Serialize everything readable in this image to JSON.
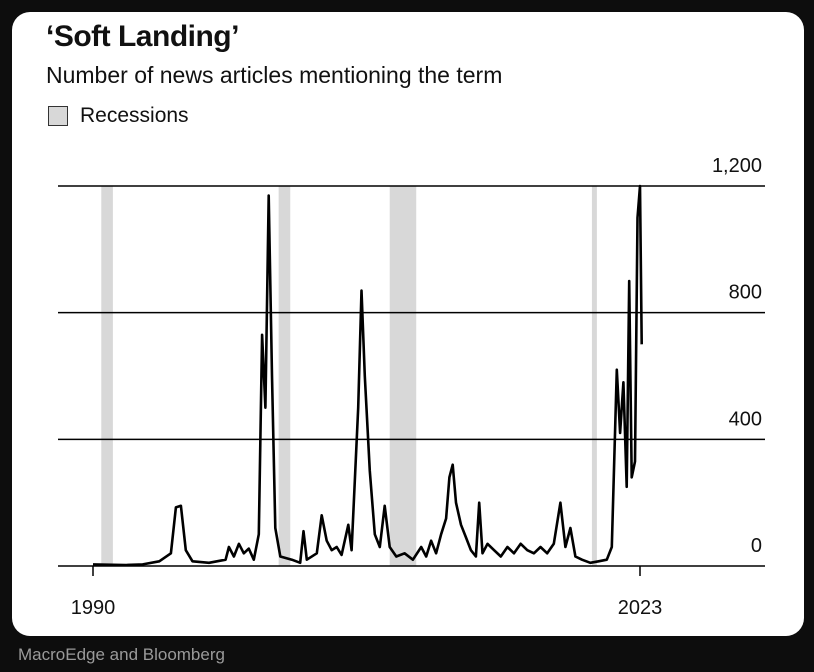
{
  "colors": {
    "background": "#0d0d0d",
    "card": "#ffffff",
    "line": "#000000",
    "recession": "#d8d8d8",
    "source_text": "#9a9a9a"
  },
  "source": "MacroEdge and Bloomberg",
  "chart_data": {
    "type": "line",
    "title": "‘Soft Landing’",
    "subtitle": "Number of news articles mentioning the term",
    "legend": [
      {
        "label": "Recessions",
        "color": "#d8d8d8",
        "placement": "top-left"
      }
    ],
    "xlabel": "",
    "ylabel": "",
    "xlim": [
      1990,
      2030
    ],
    "ylim": [
      0,
      1200
    ],
    "grid": true,
    "y_axis_side": "right",
    "x_tick_labels": [
      "1990",
      "2023"
    ],
    "y_tick_labels": [
      "1,200",
      "800",
      "400",
      "0"
    ],
    "y_ticks": [
      1200,
      800,
      400,
      0
    ],
    "x_ticks": [
      1990,
      2023
    ],
    "recessions": [
      [
        1990.5,
        1991.2
      ],
      [
        2001.2,
        2001.9
      ],
      [
        2007.9,
        2009.5
      ],
      [
        2020.1,
        2020.4
      ]
    ],
    "series": [
      {
        "values": [
          [
            1990,
            5
          ],
          [
            1992,
            3
          ],
          [
            1993,
            5
          ],
          [
            1994,
            15
          ],
          [
            1994.7,
            40
          ],
          [
            1995,
            185
          ],
          [
            1995.3,
            190
          ],
          [
            1995.6,
            50
          ],
          [
            1996,
            15
          ],
          [
            1997,
            10
          ],
          [
            1998,
            20
          ],
          [
            1998.2,
            60
          ],
          [
            1998.5,
            30
          ],
          [
            1998.8,
            70
          ],
          [
            1999.1,
            40
          ],
          [
            1999.4,
            55
          ],
          [
            1999.7,
            20
          ],
          [
            2000,
            100
          ],
          [
            2000.2,
            730
          ],
          [
            2000.4,
            500
          ],
          [
            2000.6,
            1170
          ],
          [
            2000.8,
            600
          ],
          [
            2001,
            120
          ],
          [
            2001.3,
            30
          ],
          [
            2002,
            20
          ],
          [
            2002.5,
            10
          ],
          [
            2002.7,
            110
          ],
          [
            2002.9,
            20
          ],
          [
            2003.5,
            40
          ],
          [
            2003.8,
            160
          ],
          [
            2004.1,
            80
          ],
          [
            2004.4,
            50
          ],
          [
            2004.7,
            60
          ],
          [
            2005,
            35
          ],
          [
            2005.4,
            130
          ],
          [
            2005.6,
            50
          ],
          [
            2006,
            500
          ],
          [
            2006.2,
            870
          ],
          [
            2006.4,
            600
          ],
          [
            2006.7,
            300
          ],
          [
            2007,
            100
          ],
          [
            2007.3,
            60
          ],
          [
            2007.6,
            190
          ],
          [
            2007.9,
            60
          ],
          [
            2008.3,
            30
          ],
          [
            2008.8,
            40
          ],
          [
            2009.3,
            20
          ],
          [
            2009.8,
            60
          ],
          [
            2010.1,
            30
          ],
          [
            2010.4,
            80
          ],
          [
            2010.7,
            40
          ],
          [
            2011,
            100
          ],
          [
            2011.3,
            150
          ],
          [
            2011.5,
            280
          ],
          [
            2011.7,
            320
          ],
          [
            2011.9,
            200
          ],
          [
            2012.2,
            130
          ],
          [
            2012.5,
            90
          ],
          [
            2012.8,
            50
          ],
          [
            2013.1,
            30
          ],
          [
            2013.3,
            200
          ],
          [
            2013.5,
            40
          ],
          [
            2013.8,
            70
          ],
          [
            2014.2,
            50
          ],
          [
            2014.6,
            30
          ],
          [
            2015,
            60
          ],
          [
            2015.4,
            40
          ],
          [
            2015.8,
            70
          ],
          [
            2016.2,
            50
          ],
          [
            2016.6,
            40
          ],
          [
            2017,
            60
          ],
          [
            2017.4,
            40
          ],
          [
            2017.8,
            70
          ],
          [
            2018.2,
            200
          ],
          [
            2018.5,
            60
          ],
          [
            2018.8,
            120
          ],
          [
            2019.1,
            30
          ],
          [
            2019.5,
            20
          ],
          [
            2020,
            10
          ],
          [
            2020.5,
            15
          ],
          [
            2021,
            20
          ],
          [
            2021.3,
            60
          ],
          [
            2021.6,
            620
          ],
          [
            2021.8,
            420
          ],
          [
            2022,
            580
          ],
          [
            2022.2,
            250
          ],
          [
            2022.35,
            900
          ],
          [
            2022.5,
            280
          ],
          [
            2022.7,
            330
          ],
          [
            2022.85,
            1100
          ],
          [
            2023,
            1200
          ],
          [
            2023.1,
            700
          ]
        ]
      }
    ]
  }
}
